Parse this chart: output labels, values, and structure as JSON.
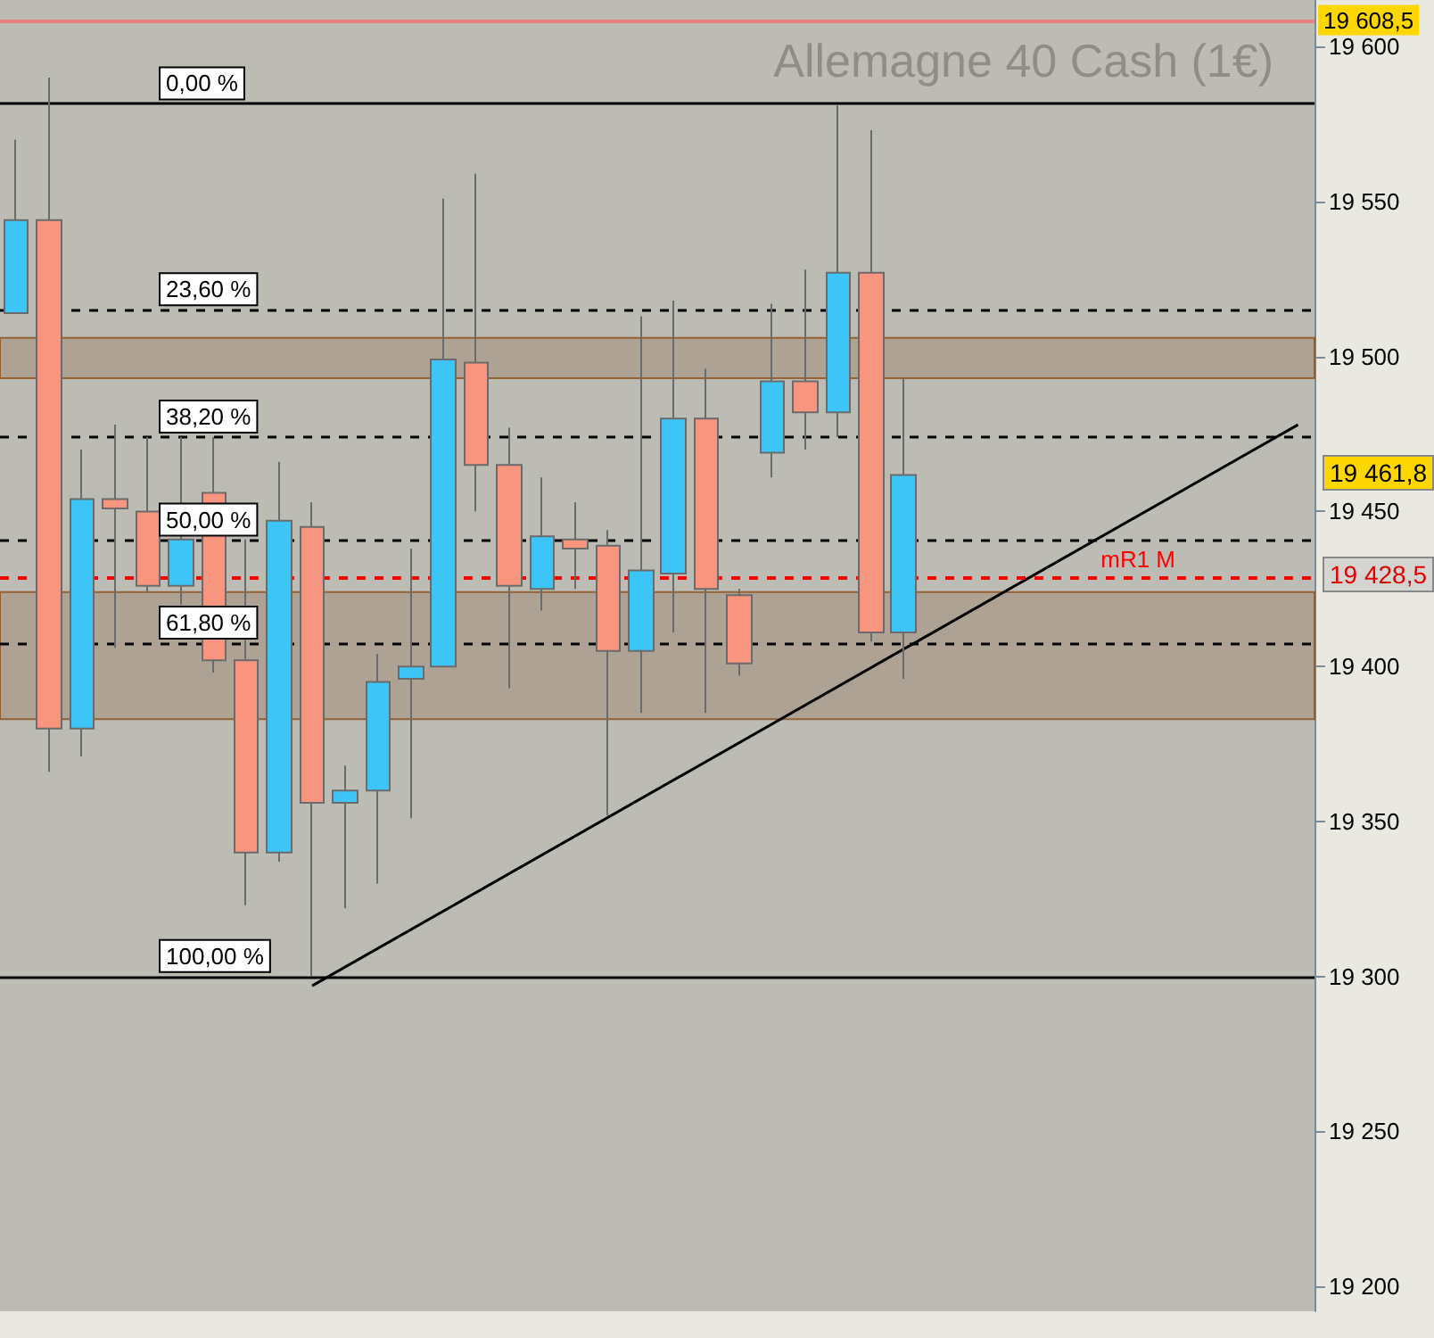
{
  "chart_data": {
    "type": "candlestick",
    "title": "Allemagne 40 Cash (1€)",
    "categories": [
      null,
      null,
      null,
      null,
      null,
      null,
      null,
      null,
      null,
      null,
      null,
      null,
      null,
      null,
      null,
      null,
      null,
      null,
      null,
      null,
      null,
      null,
      null,
      null,
      null,
      null,
      null,
      null,
      null,
      null,
      null,
      null,
      null,
      null,
      null,
      null,
      null,
      null,
      null,
      null
    ],
    "ohlc": [
      [
        19514,
        19570,
        19514,
        19544
      ],
      [
        19544,
        19590,
        19366,
        19380
      ],
      [
        19380,
        19470,
        19371,
        19454
      ],
      [
        19454,
        19478,
        19406,
        19451
      ],
      [
        19450,
        19474,
        19424,
        19426
      ],
      [
        19426,
        19474,
        19420,
        19441
      ],
      [
        19456,
        19474,
        19398,
        19402
      ],
      [
        19402,
        19441,
        19323,
        19340
      ],
      [
        19340,
        19466,
        19337,
        19447
      ],
      [
        19445,
        19453,
        19300,
        19356
      ],
      [
        19356,
        19368,
        19322,
        19360
      ],
      [
        19360,
        19404,
        19330,
        19395
      ],
      [
        19396,
        19438,
        19351,
        19400
      ],
      [
        19400,
        19551,
        19400,
        19499
      ],
      [
        19498,
        19559,
        19450,
        19465
      ],
      [
        19465,
        19477,
        19393,
        19426
      ],
      [
        19425,
        19461,
        19418,
        19442
      ],
      [
        19441,
        19453,
        19425,
        19438
      ],
      [
        19439,
        19444,
        19352,
        19405
      ],
      [
        19405,
        19513,
        19385,
        19431
      ],
      [
        19430,
        19518,
        19411,
        19480
      ],
      [
        19480,
        19496,
        19385,
        19425
      ],
      [
        19423,
        19425,
        19397,
        19401
      ],
      [
        19469,
        19517,
        19461,
        19492
      ],
      [
        19492,
        19528,
        19470,
        19482
      ],
      [
        19482,
        19581,
        19474,
        19527
      ],
      [
        19527,
        19573,
        19408,
        19411
      ],
      [
        19411,
        19493,
        19396,
        19461.8
      ],
      null,
      null,
      null,
      null,
      null,
      null,
      null,
      null,
      null,
      null,
      null,
      null
    ],
    "colors": [
      "#3ec5f7",
      "#f7957f",
      "#3ec5f7",
      "#f7957f",
      "#f7957f",
      "#3ec5f7",
      "#f7957f",
      "#f7957f",
      "#3ec5f7",
      "#f7957f",
      "#3ec5f7",
      "#3ec5f7",
      "#3ec5f7",
      "#3ec5f7",
      "#f7957f",
      "#f7957f",
      "#3ec5f7",
      "#f7957f",
      "#f7957f",
      "#3ec5f7",
      "#3ec5f7",
      "#f7957f",
      "#f7957f",
      "#3ec5f7",
      "#f7957f",
      "#3ec5f7",
      "#f7957f",
      "#3ec5f7",
      null,
      null,
      null,
      null,
      null,
      null,
      null,
      null,
      null,
      null,
      null,
      null
    ],
    "series": [
      {
        "type": "line",
        "color": "#000000",
        "values": [
          null,
          null,
          null,
          null,
          null,
          null,
          null,
          null,
          null,
          19297,
          null,
          null,
          null,
          null,
          null,
          null,
          null,
          null,
          null,
          null,
          null,
          null,
          null,
          null,
          null,
          null,
          null,
          null,
          null,
          null,
          null,
          null,
          null,
          null,
          null,
          null,
          null,
          null,
          null,
          19478
        ]
      }
    ],
    "ylim": [
      19192,
      19615
    ],
    "yticks": [
      {
        "value": 19200,
        "label": "19 200"
      },
      {
        "value": 19250,
        "label": "19 250"
      },
      {
        "value": 19300,
        "label": "19 300"
      },
      {
        "value": 19350,
        "label": "19 350"
      },
      {
        "value": 19400,
        "label": "19 400"
      },
      {
        "value": 19450,
        "label": "19 450"
      },
      {
        "value": 19500,
        "label": "19 500"
      },
      {
        "value": 19550,
        "label": "19 550"
      },
      {
        "value": 19600,
        "label": "19 600"
      }
    ],
    "ref_lines": [
      {
        "axis": "y",
        "value": 19581.5,
        "color": "#000000",
        "line_style": "solid"
      },
      {
        "axis": "y",
        "value": 19515.1,
        "color": "#000000",
        "line_style": "dashed"
      },
      {
        "axis": "y",
        "value": 19474,
        "color": "#000000",
        "line_style": "dashed"
      },
      {
        "axis": "y",
        "value": 19440.75,
        "color": "#000000",
        "line_style": "dashed"
      },
      {
        "axis": "y",
        "value": 19407.5,
        "color": "#000000",
        "line_style": "dashed"
      },
      {
        "axis": "y",
        "value": 19300,
        "color": "#000000",
        "line_style": "solid"
      },
      {
        "axis": "y",
        "value": 19428.5,
        "label": "mR1 M",
        "color": "#ff0000",
        "line_style": "dashed"
      },
      {
        "axis": "y",
        "value": 19608.5,
        "label": "19 608,5",
        "color": "#f08080",
        "line_style": "solid"
      }
    ],
    "bands": [
      {
        "axis": "y",
        "from": 19493,
        "to": 19506,
        "color": "#a8998a"
      },
      {
        "axis": "y",
        "from": 19383,
        "to": 19424,
        "color": "#a8998a"
      }
    ],
    "annotations": [
      "19 461,8",
      "19 428,5",
      {
        "text": "0,00 %",
        "y": 19581.5
      },
      {
        "text": "23,60 %",
        "y": 19515.1
      },
      {
        "text": "38,20 %",
        "y": 19474
      },
      {
        "text": "50,00 %",
        "y": 19440.75
      },
      {
        "text": "61,80 %",
        "y": 19407.5
      },
      {
        "text": "100,00 %",
        "y": 19300
      }
    ],
    "grid": false
  }
}
